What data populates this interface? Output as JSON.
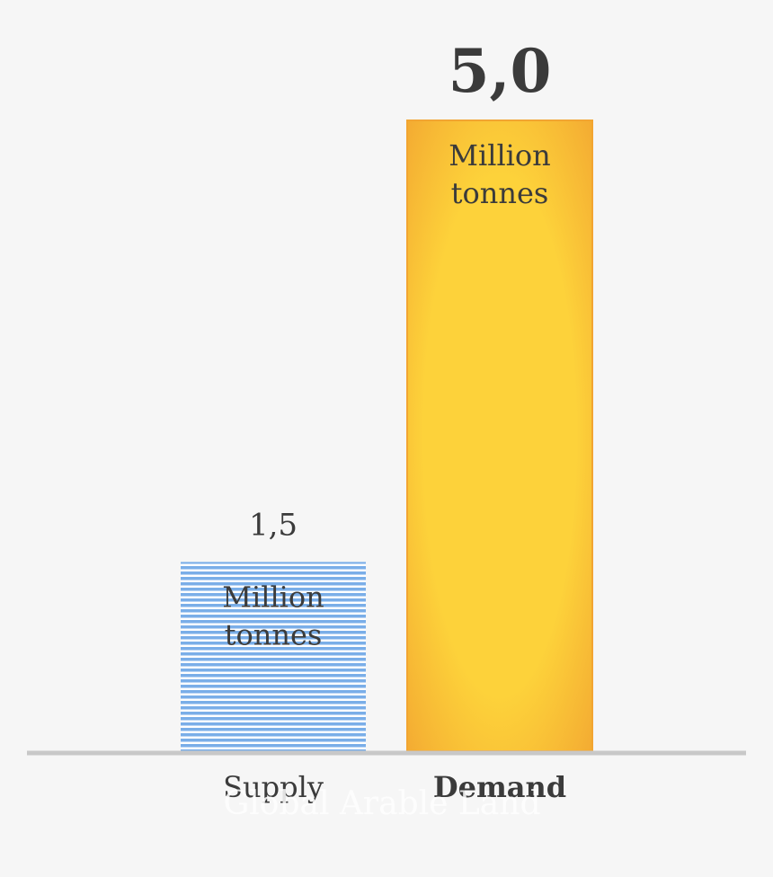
{
  "chart_data": {
    "type": "bar",
    "title": "",
    "xlabel": "",
    "ylabel": "",
    "categories": [
      "Supply",
      "Demand"
    ],
    "values": [
      1.5,
      5.0
    ],
    "value_labels": [
      "1,5",
      "5,0"
    ],
    "unit_label": [
      "Million",
      "tonnes"
    ],
    "ylim": [
      0,
      5.0
    ],
    "grid": false,
    "legend": "none",
    "colors": {
      "supply": "#7aaee8",
      "supply_stripe": "#ffffff",
      "demand": "#fdd23a",
      "demand_edge": "#f2a531",
      "baseline": "#c8c8c8",
      "text": "#3b3b3b"
    },
    "watermark": "Global Arable Land"
  }
}
